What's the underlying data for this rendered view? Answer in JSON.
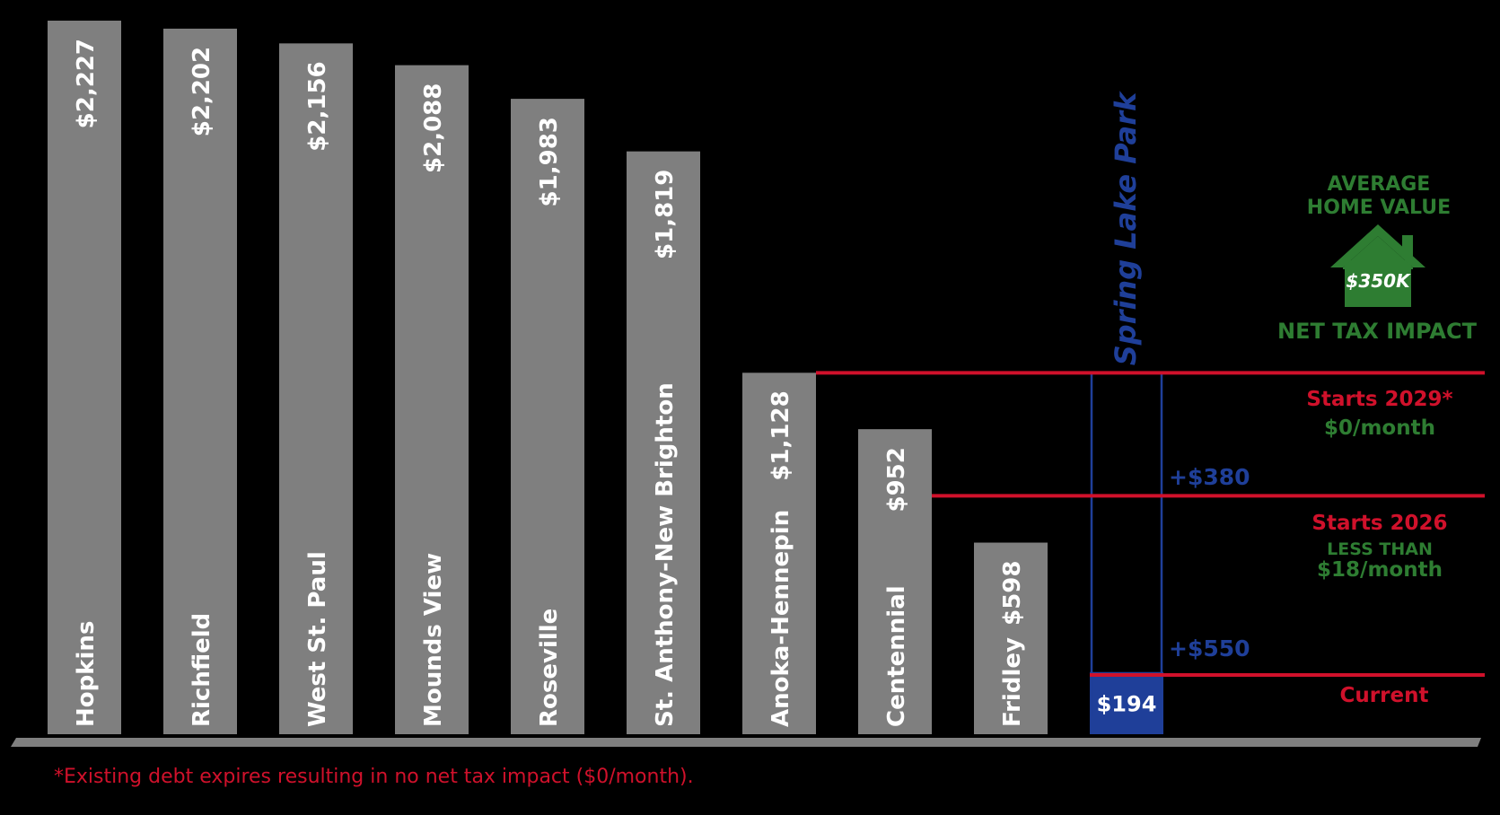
{
  "colors": {
    "bar": "#7f7f7f",
    "highlight_bar": "#1f3f99",
    "red": "#d0112b",
    "green": "#2e7d32",
    "blue": "#1f3f99",
    "text_white": "#ffffff",
    "background": "#000000",
    "axis": "#7f7f7f"
  },
  "chart_data": {
    "type": "bar",
    "ylim": [
      0,
      2227
    ],
    "categories": [
      "Hopkins",
      "Richfield",
      "West St. Paul",
      "Mounds View",
      "Roseville",
      "St. Anthony-New Brighton",
      "Anoka-Hennepin",
      "Centennial",
      "Fridley",
      "Spring Lake Park"
    ],
    "values": [
      2227,
      2202,
      2156,
      2088,
      1983,
      1819,
      1128,
      952,
      598,
      194
    ],
    "value_labels": [
      "$2,227",
      "$2,202",
      "$2,156",
      "$2,088",
      "$1,983",
      "$1,819",
      "$1,128",
      "$952",
      "$598",
      "$194"
    ],
    "highlight_index": 9,
    "levels": [
      {
        "value": 1128,
        "label": "Starts 2029*",
        "sublabel": "$0/month",
        "sublabel2": ""
      },
      {
        "value": 744,
        "label": "Starts 2026",
        "sublabel": "LESS THAN",
        "sublabel2": "$18/month"
      },
      {
        "value": 194,
        "label": "Current",
        "sublabel": "",
        "sublabel2": ""
      }
    ],
    "increments": [
      "+$380",
      "+$550"
    ]
  },
  "legend": {
    "line1": "AVERAGE",
    "line2": "HOME VALUE",
    "house_value": "$350K",
    "net_label": "NET TAX IMPACT"
  },
  "footnote": "*Existing debt expires resulting in no net tax impact ($0/month)."
}
